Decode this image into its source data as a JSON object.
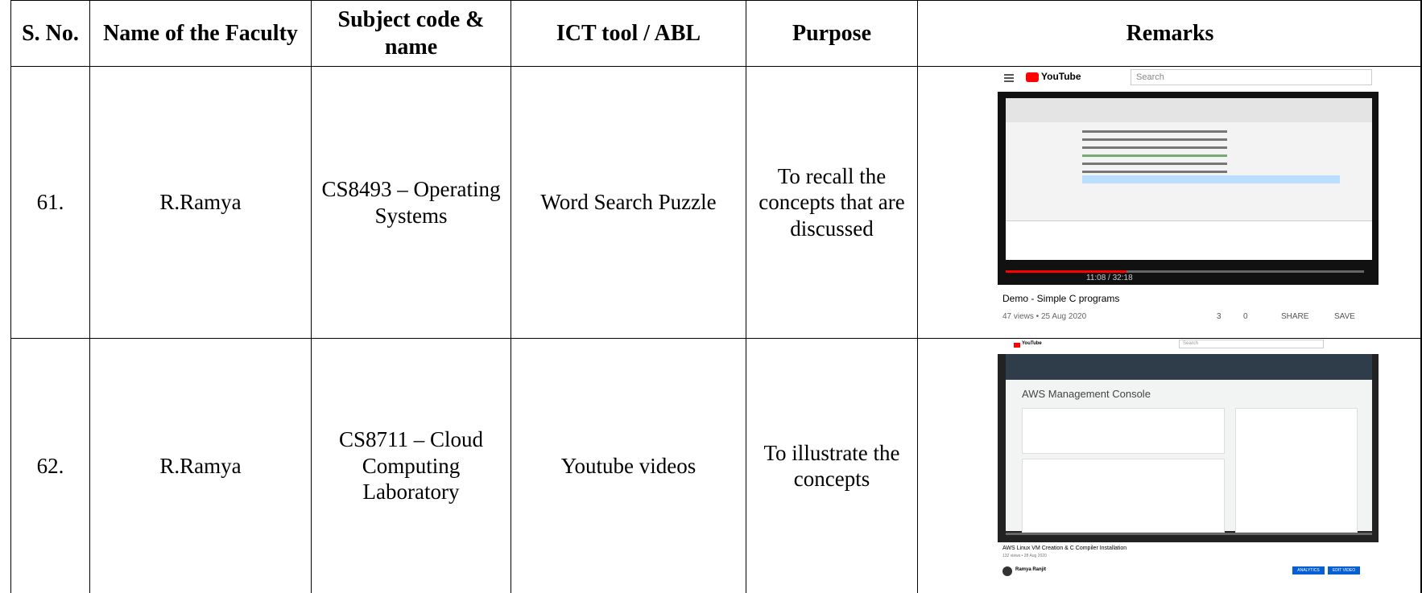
{
  "table": {
    "header": [
      "S. No.",
      "Name of the Faculty",
      "Subject code & name",
      "ICT tool / ABL",
      "Purpose",
      "Remarks"
    ],
    "rows": [
      [
        "61.",
        "R.Ramya",
        "CS8493 – Operating Systems",
        "Word Search Puzzle",
        "To recall the concepts that are discussed"
      ],
      [
        "62.",
        "R.Ramya",
        "CS8711 – Cloud Computing Laboratory",
        "Youtube videos",
        "To illustrate the concepts"
      ]
    ]
  },
  "screenshots": [
    {
      "logo": "YouTube",
      "search": "Search",
      "time": "11:08 / 32:18",
      "title": "Demo - Simple C programs",
      "meta": "47 views • 25 Aug 2020",
      "likes": "3",
      "dislikes": "0",
      "share": "SHARE",
      "save": "SAVE"
    },
    {
      "logo": "YouTube",
      "search": "Search",
      "heading": "AWS Management Console",
      "title": "AWS Linux VM Creation & C Compiler Installation",
      "meta": "132 views • 28 Aug 2020",
      "channel": "Ramya Ranjit",
      "analytics": "ANALYTICS",
      "edit": "EDIT VIDEO"
    }
  ]
}
